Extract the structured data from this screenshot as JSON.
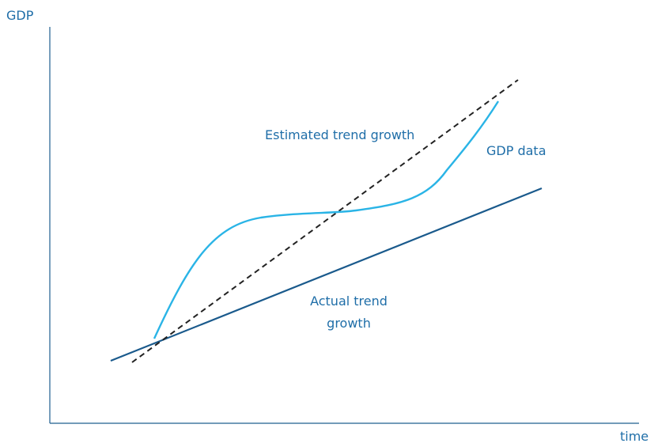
{
  "axes": {
    "y_label": "GDP",
    "x_label": "time"
  },
  "labels": {
    "estimated": "Estimated trend growth",
    "gdp_data": "GDP data",
    "actual": [
      "Actual trend",
      "growth"
    ]
  }
}
